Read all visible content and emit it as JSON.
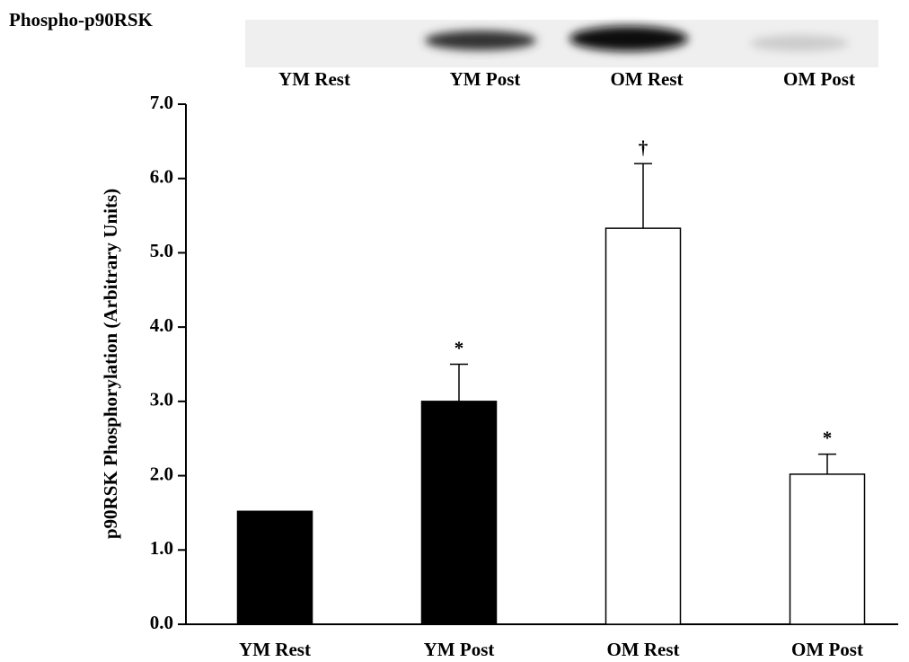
{
  "chart_data": {
    "type": "bar",
    "blot": {
      "label": "Phospho-p90RSK",
      "lanes": [
        "YM Rest",
        "YM Post",
        "OM Rest",
        "OM Post"
      ]
    },
    "y_label": "p90RSK Phosphorylation (Arbitrary Units)",
    "categories": [
      "YM Rest",
      "YM Post",
      "OM Rest",
      "OM Post"
    ],
    "values": [
      1.52,
      3.0,
      5.33,
      2.02
    ],
    "errors": [
      null,
      0.5,
      0.87,
      0.27
    ],
    "significance": [
      null,
      "*",
      "†",
      "*"
    ],
    "colors": [
      "#000000",
      "#000000",
      "#ffffff",
      "#ffffff"
    ],
    "ylim": [
      0,
      7
    ],
    "yticks": [
      {
        "value": 0,
        "label": "0.0"
      },
      {
        "value": 1,
        "label": "1.0"
      },
      {
        "value": 2,
        "label": "2.0"
      },
      {
        "value": 3,
        "label": "3.0"
      },
      {
        "value": 4,
        "label": "4.0"
      },
      {
        "value": 5,
        "label": "5.0"
      },
      {
        "value": 6,
        "label": "6.0"
      },
      {
        "value": 7,
        "label": "7.0"
      }
    ]
  }
}
